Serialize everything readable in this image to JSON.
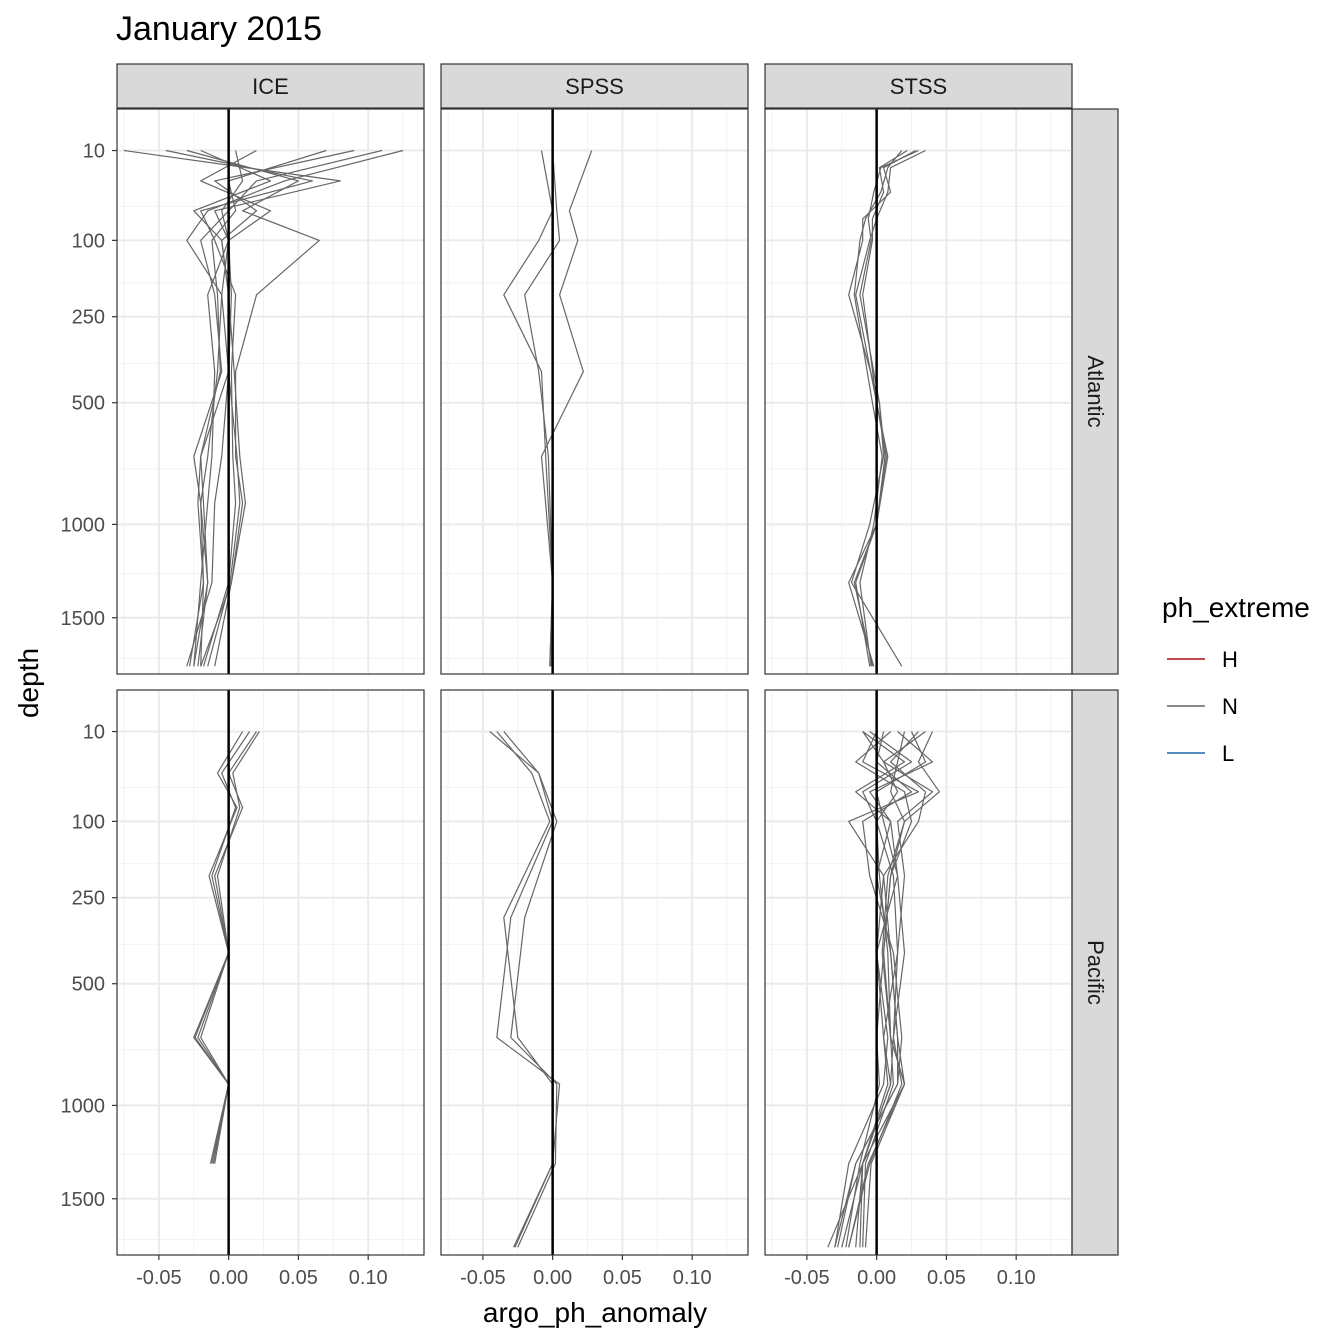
{
  "chart_data": {
    "type": "line",
    "title": "January 2015",
    "xlabel": "argo_ph_anomaly",
    "ylabel": "depth",
    "x_ticks": [
      -0.05,
      0.0,
      0.05,
      0.1
    ],
    "x_tick_labels": [
      "-0.05",
      "0.00",
      "0.05",
      "0.10"
    ],
    "y_ticks": [
      10,
      100,
      250,
      500,
      1000,
      1500
    ],
    "y_tick_labels": [
      "10",
      "100",
      "250",
      "500",
      "1000",
      "1500"
    ],
    "y_scale": "sqrt, reversed",
    "xlim": [
      -0.08,
      0.14
    ],
    "ylim": [
      1850,
      0
    ],
    "grid": true,
    "reference_line_x": 0,
    "legend": {
      "title": "ph_extreme",
      "placement": "right",
      "items": [
        {
          "label": "H",
          "color": "#a50f15"
        },
        {
          "label": "N",
          "color": "#666666"
        },
        {
          "label": "L",
          "color": "#2166ac"
        }
      ]
    },
    "columns": [
      "ICE",
      "SPSS",
      "STSS"
    ],
    "rows": [
      "Atlantic",
      "Pacific"
    ],
    "panels": [
      {
        "column": "ICE",
        "row": "Atlantic",
        "series": [
          {
            "depths": [
              10,
              30,
              60,
              100,
              200,
              400,
              700,
              900,
              1300,
              1800
            ],
            "values": [
              0.005,
              0.01,
              -0.005,
              0.0,
              0.002,
              0.0,
              -0.02,
              -0.018,
              -0.015,
              -0.025
            ]
          },
          {
            "depths": [
              10,
              30,
              60,
              100,
              200,
              400,
              700,
              900,
              1300,
              1800
            ],
            "values": [
              -0.075,
              0.08,
              -0.01,
              0.0,
              -0.005,
              -0.008,
              -0.015,
              -0.02,
              -0.018,
              -0.028
            ]
          },
          {
            "depths": [
              10,
              30,
              60,
              100,
              200,
              400,
              700,
              900,
              1300,
              1800
            ],
            "values": [
              0.125,
              0.04,
              -0.015,
              -0.03,
              -0.005,
              0.0,
              -0.005,
              -0.01,
              -0.012,
              -0.03
            ]
          },
          {
            "depths": [
              10,
              30,
              60,
              100,
              200,
              400,
              700,
              900,
              1300,
              1800
            ],
            "values": [
              0.11,
              0.02,
              0.0,
              -0.02,
              -0.01,
              -0.005,
              -0.025,
              -0.02,
              -0.015,
              -0.022
            ]
          },
          {
            "depths": [
              10,
              30,
              60,
              100,
              200,
              400,
              700,
              900,
              1300,
              1800
            ],
            "values": [
              -0.03,
              0.05,
              0.01,
              0.065,
              0.02,
              0.005,
              0.005,
              0.01,
              0.002,
              -0.01
            ]
          },
          {
            "depths": [
              10,
              30,
              60,
              100,
              200,
              400,
              700,
              900,
              1300,
              1800
            ],
            "values": [
              0.09,
              -0.01,
              0.02,
              -0.005,
              0.0,
              0.004,
              0.008,
              0.012,
              0.002,
              -0.02
            ]
          },
          {
            "depths": [
              10,
              30,
              60,
              100,
              200,
              400,
              700,
              900,
              1300,
              1800
            ],
            "values": [
              -0.045,
              0.06,
              -0.02,
              -0.01,
              0.005,
              0.002,
              0.003,
              0.005,
              0.0,
              -0.018
            ]
          },
          {
            "depths": [
              10,
              30,
              60,
              100,
              200,
              400,
              700,
              900,
              1300,
              1800
            ],
            "values": [
              0.02,
              -0.02,
              0.03,
              0.0,
              -0.015,
              -0.01,
              -0.012,
              -0.015,
              -0.02,
              -0.025
            ]
          },
          {
            "depths": [
              10,
              30,
              60,
              100,
              200,
              400,
              700,
              900,
              1300,
              1800
            ],
            "values": [
              -0.02,
              0.03,
              -0.025,
              -0.005,
              0.0,
              0.0,
              0.006,
              0.008,
              0.001,
              -0.015
            ]
          },
          {
            "depths": [
              10,
              30,
              60,
              100,
              200,
              400,
              700,
              900,
              1300,
              1800
            ],
            "values": [
              0.07,
              0.0,
              0.005,
              -0.012,
              -0.008,
              -0.006,
              -0.02,
              -0.022,
              -0.018,
              -0.02
            ]
          }
        ]
      },
      {
        "column": "SPSS",
        "row": "Atlantic",
        "series": [
          {
            "depths": [
              10,
              60,
              100,
              200,
              400,
              700,
              1300,
              1800
            ],
            "values": [
              -0.008,
              0.0,
              -0.01,
              -0.035,
              -0.008,
              -0.005,
              0.0,
              -0.002
            ]
          },
          {
            "depths": [
              10,
              60,
              100,
              200,
              400,
              700,
              1300,
              1800
            ],
            "values": [
              0.028,
              0.012,
              0.018,
              0.005,
              0.022,
              -0.008,
              0.0,
              -0.001
            ]
          },
          {
            "depths": [
              10,
              60,
              100,
              200,
              400,
              700,
              1300,
              1800
            ],
            "values": [
              0.0,
              0.003,
              0.005,
              -0.02,
              -0.01,
              -0.003,
              0.0,
              -0.002
            ]
          }
        ]
      },
      {
        "column": "STSS",
        "row": "Atlantic",
        "series": [
          {
            "depths": [
              10,
              20,
              40,
              70,
              100,
              200,
              500,
              700,
              1000,
              1300,
              1800
            ],
            "values": [
              0.035,
              0.01,
              0.008,
              0.0,
              -0.005,
              -0.015,
              0.0,
              0.008,
              0.0,
              -0.015,
              -0.005
            ]
          },
          {
            "depths": [
              10,
              20,
              40,
              70,
              100,
              200,
              500,
              700,
              1000,
              1300,
              1800
            ],
            "values": [
              0.028,
              0.005,
              0.01,
              -0.01,
              -0.01,
              -0.02,
              0.002,
              0.005,
              -0.005,
              -0.018,
              0.018
            ]
          },
          {
            "depths": [
              10,
              20,
              40,
              70,
              100,
              200,
              500,
              700,
              1000,
              1300,
              1800
            ],
            "values": [
              0.022,
              0.002,
              0.005,
              -0.003,
              -0.003,
              -0.01,
              0.0,
              0.007,
              0.0,
              -0.02,
              -0.002
            ]
          },
          {
            "depths": [
              10,
              20,
              40,
              70,
              100,
              200,
              500,
              700,
              1000,
              1300,
              1800
            ],
            "values": [
              0.018,
              0.008,
              0.003,
              -0.008,
              -0.012,
              -0.016,
              -0.003,
              0.004,
              -0.002,
              -0.012,
              -0.004
            ]
          },
          {
            "depths": [
              10,
              20,
              40,
              70,
              100,
              200,
              500,
              700,
              1000,
              1300,
              1800
            ],
            "values": [
              0.03,
              0.003,
              -0.002,
              -0.006,
              -0.004,
              -0.012,
              0.002,
              0.006,
              0.0,
              -0.016,
              -0.003
            ]
          }
        ]
      },
      {
        "column": "ICE",
        "row": "Pacific",
        "series": [
          {
            "depths": [
              10,
              40,
              80,
              200,
              400,
              700,
              900,
              1300
            ],
            "values": [
              0.02,
              0.0,
              0.01,
              -0.01,
              0.0,
              -0.025,
              0.0,
              -0.012
            ]
          },
          {
            "depths": [
              10,
              40,
              80,
              200,
              400,
              700,
              900,
              1300
            ],
            "values": [
              0.015,
              -0.005,
              0.005,
              -0.012,
              0.0,
              -0.02,
              0.0,
              -0.01
            ]
          },
          {
            "depths": [
              10,
              40,
              80,
              200,
              400,
              700,
              900,
              1300
            ],
            "values": [
              0.022,
              0.003,
              0.008,
              -0.008,
              0.0,
              -0.022,
              0.0,
              -0.013
            ]
          },
          {
            "depths": [
              10,
              40,
              80,
              200,
              400,
              700,
              900,
              1300
            ],
            "values": [
              0.01,
              -0.008,
              0.006,
              -0.014,
              0.0,
              -0.024,
              0.0,
              -0.011
            ]
          }
        ]
      },
      {
        "column": "SPSS",
        "row": "Pacific",
        "series": [
          {
            "depths": [
              10,
              40,
              100,
              300,
              700,
              900,
              1300,
              1800
            ],
            "values": [
              -0.045,
              -0.01,
              0.0,
              -0.03,
              -0.04,
              0.005,
              0.0,
              -0.028
            ]
          },
          {
            "depths": [
              10,
              40,
              100,
              300,
              700,
              900,
              1300,
              1800
            ],
            "values": [
              -0.035,
              -0.01,
              0.003,
              -0.02,
              -0.03,
              0.003,
              0.002,
              -0.025
            ]
          },
          {
            "depths": [
              10,
              40,
              100,
              300,
              700,
              900,
              1300,
              1800
            ],
            "values": [
              -0.04,
              -0.015,
              -0.002,
              -0.035,
              -0.025,
              0.0,
              0.0,
              -0.027
            ]
          }
        ]
      },
      {
        "column": "STSS",
        "row": "Pacific",
        "series": [
          {
            "depths": [
              10,
              30,
              60,
              100,
              200,
              400,
              700,
              900,
              1300,
              1800
            ],
            "values": [
              0.04,
              0.03,
              0.045,
              0.02,
              0.01,
              0.005,
              0.01,
              0.02,
              -0.01,
              -0.035
            ]
          },
          {
            "depths": [
              10,
              30,
              60,
              100,
              200,
              400,
              700,
              900,
              1300,
              1800
            ],
            "values": [
              -0.01,
              0.02,
              -0.015,
              0.01,
              0.0,
              0.01,
              0.015,
              0.015,
              -0.015,
              -0.03
            ]
          },
          {
            "depths": [
              10,
              30,
              60,
              100,
              200,
              400,
              700,
              900,
              1300,
              1800
            ],
            "values": [
              0.035,
              0.005,
              0.04,
              0.015,
              0.02,
              0.015,
              0.005,
              0.01,
              -0.01,
              -0.025
            ]
          },
          {
            "depths": [
              10,
              30,
              60,
              100,
              200,
              400,
              700,
              900,
              1300,
              1800
            ],
            "values": [
              0.0,
              -0.01,
              0.03,
              -0.02,
              0.005,
              0.0,
              0.008,
              0.005,
              -0.02,
              -0.03
            ]
          },
          {
            "depths": [
              10,
              30,
              60,
              100,
              200,
              400,
              700,
              900,
              1300,
              1800
            ],
            "values": [
              0.025,
              0.035,
              0.0,
              0.005,
              0.015,
              0.02,
              0.012,
              0.018,
              -0.005,
              -0.02
            ]
          },
          {
            "depths": [
              10,
              30,
              60,
              100,
              200,
              400,
              700,
              900,
              1300,
              1800
            ],
            "values": [
              0.01,
              -0.015,
              0.02,
              0.025,
              0.01,
              0.005,
              0.0,
              0.002,
              -0.012,
              -0.022
            ]
          },
          {
            "depths": [
              10,
              30,
              60,
              100,
              200,
              400,
              700,
              900,
              1300,
              1800
            ],
            "values": [
              -0.005,
              0.025,
              -0.01,
              0.0,
              0.002,
              0.008,
              0.01,
              0.012,
              -0.008,
              -0.01
            ]
          },
          {
            "depths": [
              10,
              30,
              60,
              100,
              200,
              400,
              700,
              900,
              1300,
              1800
            ],
            "values": [
              0.03,
              0.01,
              0.035,
              0.03,
              0.005,
              0.01,
              0.015,
              0.02,
              -0.004,
              -0.008
            ]
          },
          {
            "depths": [
              10,
              30,
              60,
              100,
              200,
              400,
              700,
              900,
              1300,
              1800
            ],
            "values": [
              0.015,
              0.04,
              -0.005,
              0.01,
              0.015,
              0.0,
              0.005,
              0.008,
              -0.01,
              -0.015
            ]
          },
          {
            "depths": [
              10,
              30,
              60,
              100,
              200,
              400,
              700,
              900,
              1300,
              1800
            ],
            "values": [
              0.005,
              0.0,
              0.025,
              -0.01,
              -0.005,
              0.012,
              0.018,
              0.015,
              -0.015,
              -0.028
            ]
          },
          {
            "depths": [
              10,
              30,
              60,
              100,
              200,
              400,
              700,
              900,
              1300,
              1800
            ],
            "values": [
              0.02,
              0.015,
              0.01,
              0.02,
              0.008,
              0.004,
              0.01,
              0.02,
              -0.006,
              -0.02
            ]
          },
          {
            "depths": [
              10,
              30,
              60,
              100,
              200,
              400,
              700,
              900,
              1300,
              1800
            ],
            "values": [
              -0.01,
              0.005,
              0.015,
              0.0,
              0.012,
              0.015,
              0.012,
              0.01,
              -0.01,
              -0.012
            ]
          }
        ]
      }
    ]
  }
}
